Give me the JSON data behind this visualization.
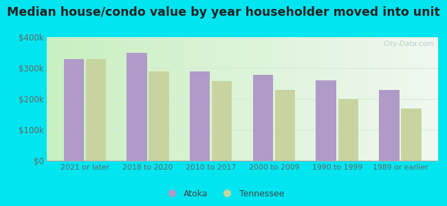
{
  "categories": [
    "2021 or later",
    "2018 to 2020",
    "2010 to 2017",
    "2000 to 2009",
    "1990 to 1999",
    "1989 or earlier"
  ],
  "atoka_values": [
    330000,
    348000,
    288000,
    278000,
    260000,
    228000
  ],
  "tennessee_values": [
    330000,
    288000,
    258000,
    228000,
    200000,
    168000
  ],
  "atoka_color": "#b09ac8",
  "tennessee_color": "#c8d4a0",
  "title": "Median house/condo value by year householder moved into unit",
  "title_fontsize": 12.5,
  "ylim": [
    0,
    400000
  ],
  "yticks": [
    0,
    100000,
    200000,
    300000,
    400000
  ],
  "ytick_labels": [
    "$0",
    "$100k",
    "$200k",
    "$300k",
    "$400k"
  ],
  "grid_color": "#e0ece0",
  "outer_bg": "#00e5f0",
  "legend_atoka": "Atoka",
  "legend_tennessee": "Tennessee",
  "watermark": "City-Data.com",
  "grad_left": "#c8f0c0",
  "grad_right": "#f0f8f0",
  "bar_width": 0.32
}
